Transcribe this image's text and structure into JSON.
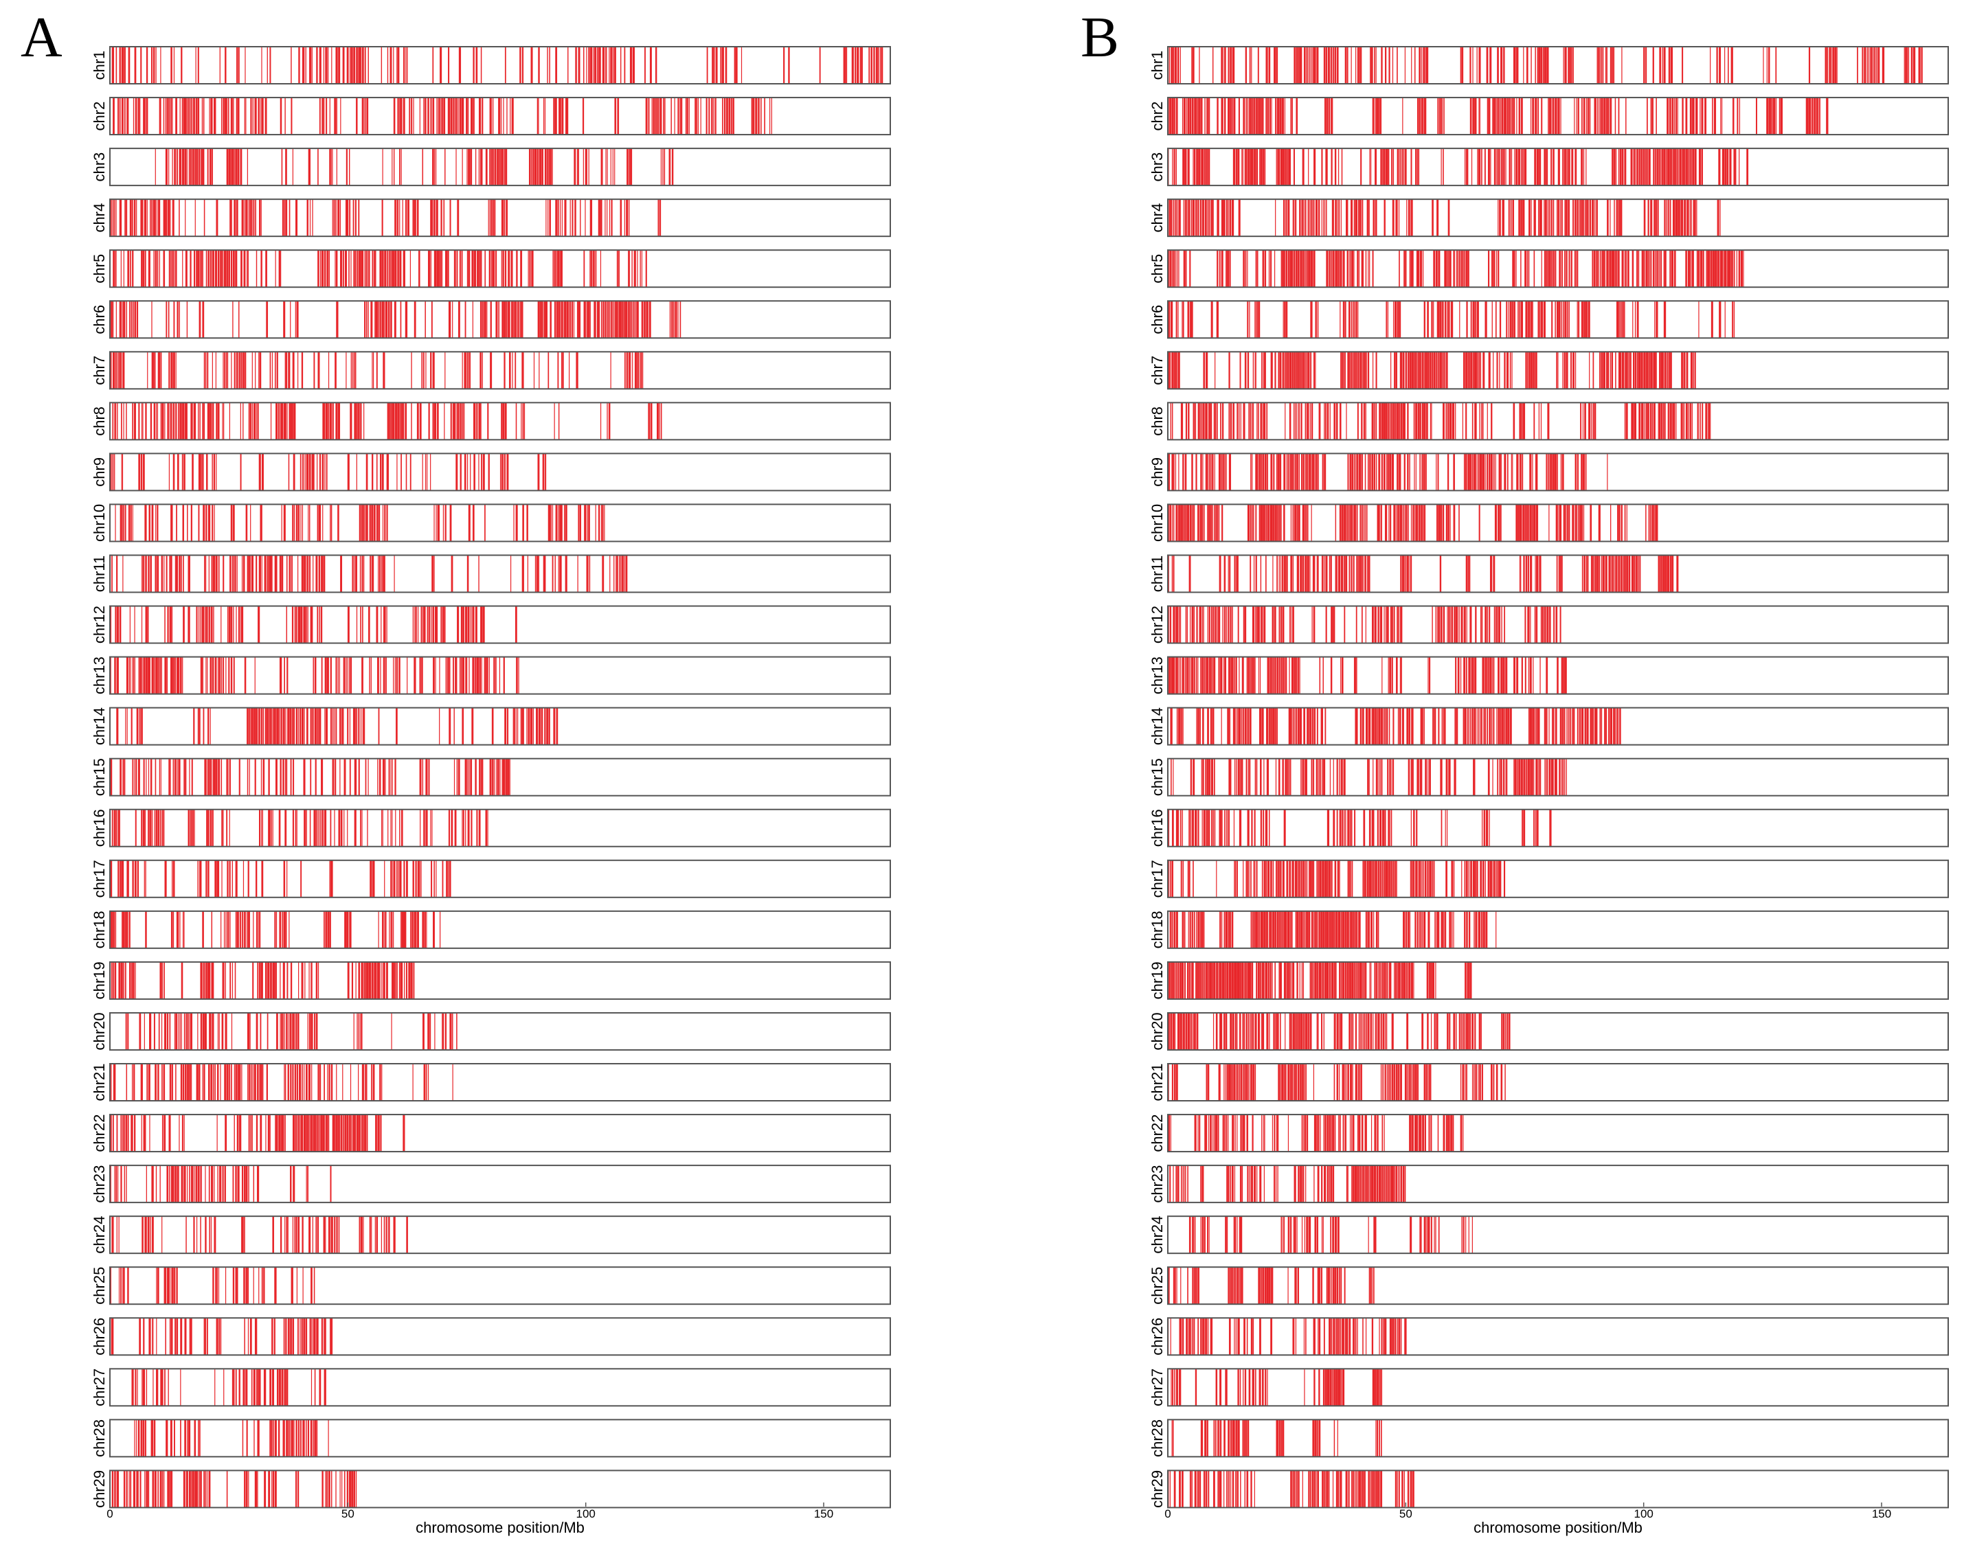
{
  "chart_data": [
    {
      "type": "chromosome_density",
      "panel": "A",
      "xlabel": "chromosome position/Mb",
      "xlim": [
        0,
        164
      ],
      "xticks": [
        0,
        50,
        100,
        150
      ],
      "mark_color": "#e8262a",
      "frame_color": "#555555",
      "chromosomes": [
        {
          "name": "chr1",
          "length": 163,
          "density": 0.5,
          "seed": 101
        },
        {
          "name": "chr2",
          "length": 139,
          "density": 0.6,
          "seed": 102
        },
        {
          "name": "chr3",
          "length": 123,
          "density": 0.6,
          "seed": 103
        },
        {
          "name": "chr4",
          "length": 116,
          "density": 0.55,
          "seed": 104
        },
        {
          "name": "chr5",
          "length": 122,
          "density": 0.6,
          "seed": 105
        },
        {
          "name": "chr6",
          "length": 120,
          "density": 0.55,
          "seed": 106
        },
        {
          "name": "chr7",
          "length": 112,
          "density": 0.6,
          "seed": 107
        },
        {
          "name": "chr8",
          "length": 116,
          "density": 0.6,
          "seed": 108
        },
        {
          "name": "chr9",
          "length": 94,
          "density": 0.55,
          "seed": 109
        },
        {
          "name": "chr10",
          "length": 104,
          "density": 0.6,
          "seed": 110
        },
        {
          "name": "chr11",
          "length": 109,
          "density": 0.55,
          "seed": 111
        },
        {
          "name": "chr12",
          "length": 87,
          "density": 0.45,
          "seed": 112
        },
        {
          "name": "chr13",
          "length": 86,
          "density": 0.6,
          "seed": 113
        },
        {
          "name": "chr14",
          "length": 97,
          "density": 0.5,
          "seed": 114
        },
        {
          "name": "chr15",
          "length": 84,
          "density": 0.55,
          "seed": 115
        },
        {
          "name": "chr16",
          "length": 82,
          "density": 0.6,
          "seed": 116
        },
        {
          "name": "chr17",
          "length": 73,
          "density": 0.5,
          "seed": 117
        },
        {
          "name": "chr18",
          "length": 70,
          "density": 0.55,
          "seed": 118
        },
        {
          "name": "chr19",
          "length": 65,
          "density": 0.7,
          "seed": 119
        },
        {
          "name": "chr20",
          "length": 73,
          "density": 0.5,
          "seed": 120
        },
        {
          "name": "chr21",
          "length": 72,
          "density": 0.55,
          "seed": 121
        },
        {
          "name": "chr22",
          "length": 62,
          "density": 0.55,
          "seed": 122
        },
        {
          "name": "chr23",
          "length": 51,
          "density": 0.6,
          "seed": 123
        },
        {
          "name": "chr24",
          "length": 64,
          "density": 0.5,
          "seed": 124
        },
        {
          "name": "chr25",
          "length": 44,
          "density": 0.55,
          "seed": 125
        },
        {
          "name": "chr26",
          "length": 53,
          "density": 0.5,
          "seed": 126
        },
        {
          "name": "chr27",
          "length": 46,
          "density": 0.5,
          "seed": 127
        },
        {
          "name": "chr28",
          "length": 46,
          "density": 0.5,
          "seed": 128
        },
        {
          "name": "chr29",
          "length": 53,
          "density": 0.5,
          "seed": 129
        }
      ]
    },
    {
      "type": "chromosome_density",
      "panel": "B",
      "xlabel": "chromosome position/Mb",
      "xlim": [
        0,
        164
      ],
      "xticks": [
        0,
        50,
        100,
        150
      ],
      "mark_color": "#e8262a",
      "frame_color": "#555555",
      "chromosomes": [
        {
          "name": "chr1",
          "length": 160,
          "density": 0.65,
          "seed": 201
        },
        {
          "name": "chr2",
          "length": 139,
          "density": 0.75,
          "seed": 202
        },
        {
          "name": "chr3",
          "length": 122,
          "density": 0.75,
          "seed": 203
        },
        {
          "name": "chr4",
          "length": 116,
          "density": 0.7,
          "seed": 204
        },
        {
          "name": "chr5",
          "length": 121,
          "density": 0.75,
          "seed": 205
        },
        {
          "name": "chr6",
          "length": 120,
          "density": 0.7,
          "seed": 206
        },
        {
          "name": "chr7",
          "length": 111,
          "density": 0.75,
          "seed": 207
        },
        {
          "name": "chr8",
          "length": 115,
          "density": 0.7,
          "seed": 208
        },
        {
          "name": "chr9",
          "length": 94,
          "density": 0.7,
          "seed": 209
        },
        {
          "name": "chr10",
          "length": 103,
          "density": 0.75,
          "seed": 210
        },
        {
          "name": "chr11",
          "length": 109,
          "density": 0.7,
          "seed": 211
        },
        {
          "name": "chr12",
          "length": 87,
          "density": 0.6,
          "seed": 212
        },
        {
          "name": "chr13",
          "length": 85,
          "density": 0.8,
          "seed": 213
        },
        {
          "name": "chr14",
          "length": 97,
          "density": 0.65,
          "seed": 214
        },
        {
          "name": "chr15",
          "length": 84,
          "density": 0.7,
          "seed": 215
        },
        {
          "name": "chr16",
          "length": 81,
          "density": 0.75,
          "seed": 216
        },
        {
          "name": "chr17",
          "length": 72,
          "density": 0.65,
          "seed": 217
        },
        {
          "name": "chr18",
          "length": 69,
          "density": 0.7,
          "seed": 218
        },
        {
          "name": "chr19",
          "length": 64,
          "density": 0.85,
          "seed": 219
        },
        {
          "name": "chr20",
          "length": 72,
          "density": 0.65,
          "seed": 220
        },
        {
          "name": "chr21",
          "length": 71,
          "density": 0.7,
          "seed": 221
        },
        {
          "name": "chr22",
          "length": 62,
          "density": 0.7,
          "seed": 222
        },
        {
          "name": "chr23",
          "length": 50,
          "density": 0.75,
          "seed": 223
        },
        {
          "name": "chr24",
          "length": 64,
          "density": 0.65,
          "seed": 224
        },
        {
          "name": "chr25",
          "length": 44,
          "density": 0.7,
          "seed": 225
        },
        {
          "name": "chr26",
          "length": 52,
          "density": 0.65,
          "seed": 226
        },
        {
          "name": "chr27",
          "length": 45,
          "density": 0.65,
          "seed": 227
        },
        {
          "name": "chr28",
          "length": 45,
          "density": 0.65,
          "seed": 228
        },
        {
          "name": "chr29",
          "length": 52,
          "density": 0.65,
          "seed": 229
        }
      ]
    }
  ]
}
